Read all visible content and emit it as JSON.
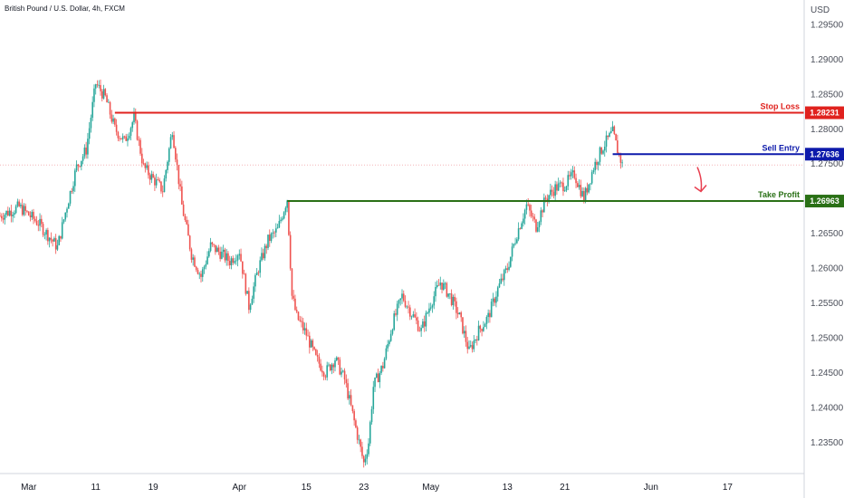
{
  "chart_data": {
    "type": "candlestick",
    "title": "British Pound / U.S. Dollar, 4h, FXCM",
    "currency": "USD",
    "y_ticks": [
      "1.29500",
      "1.29000",
      "1.28500",
      "1.28000",
      "1.27500",
      "1.26500",
      "1.26000",
      "1.25500",
      "1.25000",
      "1.24500",
      "1.24000",
      "1.23500"
    ],
    "ylim": [
      1.2305,
      1.2985
    ],
    "x_ticks": [
      "Mar",
      "11",
      "19",
      "Apr",
      "15",
      "23",
      "May",
      "13",
      "21",
      "Jun",
      "17"
    ],
    "x_tick_pos": [
      0,
      7,
      13,
      22,
      29,
      35,
      42,
      50,
      56,
      65,
      73
    ],
    "x_range": [
      -3,
      81
    ],
    "levels": [
      {
        "name": "Stop Loss",
        "value": 1.28231,
        "badge": "1.28231",
        "color": "#e0221e",
        "start": 9
      },
      {
        "name": "Sell Entry",
        "value": 1.27636,
        "badge": "1.27636",
        "color": "#0d1aab",
        "start": 61
      },
      {
        "name": "Take Profit",
        "value": 1.26963,
        "badge": "1.26963",
        "color": "#2a7016",
        "start": 27
      }
    ],
    "last_price": 1.2748,
    "arrow_color": "#e83e4f",
    "up_color": "#26a69a",
    "down_color": "#ef5350",
    "anchors": [
      [
        -3,
        1.2675
      ],
      [
        -1,
        1.2688
      ],
      [
        1,
        1.2665
      ],
      [
        3,
        1.263
      ],
      [
        4,
        1.269
      ],
      [
        5,
        1.2745
      ],
      [
        6,
        1.277
      ],
      [
        7,
        1.2865
      ],
      [
        8,
        1.2845
      ],
      [
        9,
        1.28
      ],
      [
        10,
        1.2782
      ],
      [
        11,
        1.2815
      ],
      [
        12,
        1.2745
      ],
      [
        13,
        1.2728
      ],
      [
        14,
        1.2712
      ],
      [
        15,
        1.28
      ],
      [
        16,
        1.269
      ],
      [
        17,
        1.262
      ],
      [
        18,
        1.2588
      ],
      [
        19,
        1.2632
      ],
      [
        20,
        1.2622
      ],
      [
        21,
        1.261
      ],
      [
        22,
        1.2625
      ],
      [
        23,
        1.2545
      ],
      [
        24,
        1.26
      ],
      [
        25,
        1.264
      ],
      [
        26,
        1.2655
      ],
      [
        27,
        1.27
      ],
      [
        27.5,
        1.256
      ],
      [
        28,
        1.253
      ],
      [
        29,
        1.2505
      ],
      [
        30,
        1.247
      ],
      [
        31,
        1.245
      ],
      [
        32,
        1.247
      ],
      [
        33,
        1.244
      ],
      [
        34,
        1.238
      ],
      [
        35,
        1.232
      ],
      [
        35.5,
        1.235
      ],
      [
        36,
        1.243
      ],
      [
        37,
        1.246
      ],
      [
        38,
        1.252
      ],
      [
        39,
        1.256
      ],
      [
        40,
        1.2535
      ],
      [
        41,
        1.251
      ],
      [
        42,
        1.255
      ],
      [
        43,
        1.258
      ],
      [
        44,
        1.256
      ],
      [
        45,
        1.253
      ],
      [
        46,
        1.248
      ],
      [
        47,
        1.251
      ],
      [
        48,
        1.253
      ],
      [
        49,
        1.257
      ],
      [
        50,
        1.26
      ],
      [
        51,
        1.265
      ],
      [
        52,
        1.269
      ],
      [
        53,
        1.266
      ],
      [
        54,
        1.27
      ],
      [
        55,
        1.2715
      ],
      [
        56,
        1.272
      ],
      [
        57,
        1.2735
      ],
      [
        58,
        1.27
      ],
      [
        59,
        1.2745
      ],
      [
        60,
        1.2775
      ],
      [
        61,
        1.2795
      ],
      [
        61.5,
        1.277
      ],
      [
        62,
        1.2748
      ]
    ]
  }
}
